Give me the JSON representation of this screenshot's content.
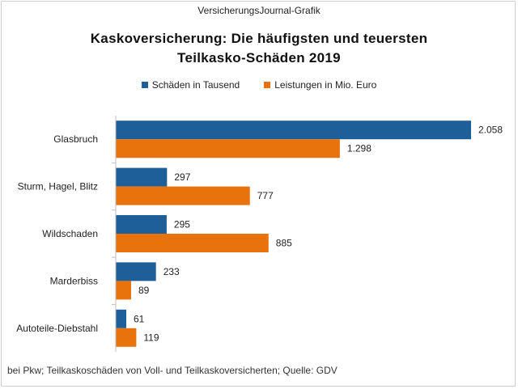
{
  "header": {
    "source_title": "VersicherungsJournal-Grafik"
  },
  "chart_data": {
    "type": "bar",
    "orientation": "horizontal",
    "title": "Kaskoversicherung:  Die häufigsten  und  teuersten",
    "subtitle": "Teilkasko-Schäden  2019",
    "categories": [
      "Glasbruch",
      "Sturm, Hagel, Blitz",
      "Wildschaden",
      "Marderbiss",
      "Autoteile-Diebstahl"
    ],
    "series": [
      {
        "name": "Schäden in Tausend",
        "color": "#1f5f99",
        "values": [
          2058,
          297,
          295,
          233,
          61
        ],
        "labels": [
          "2.058",
          "297",
          "295",
          "233",
          "61"
        ]
      },
      {
        "name": "Leistungen in Mio. Euro",
        "color": "#e8730c",
        "values": [
          1298,
          777,
          885,
          89,
          119
        ],
        "labels": [
          "1.298",
          "777",
          "885",
          "89",
          "119"
        ]
      }
    ],
    "xlim": [
      0,
      2058
    ],
    "xlabel": "",
    "ylabel": "",
    "grid": false,
    "legend_position": "top"
  },
  "footer": {
    "note": "bei Pkw; Teilkaskoschäden  von  Voll- und  Teilkaskoversicherten;   Quelle:  GDV"
  }
}
